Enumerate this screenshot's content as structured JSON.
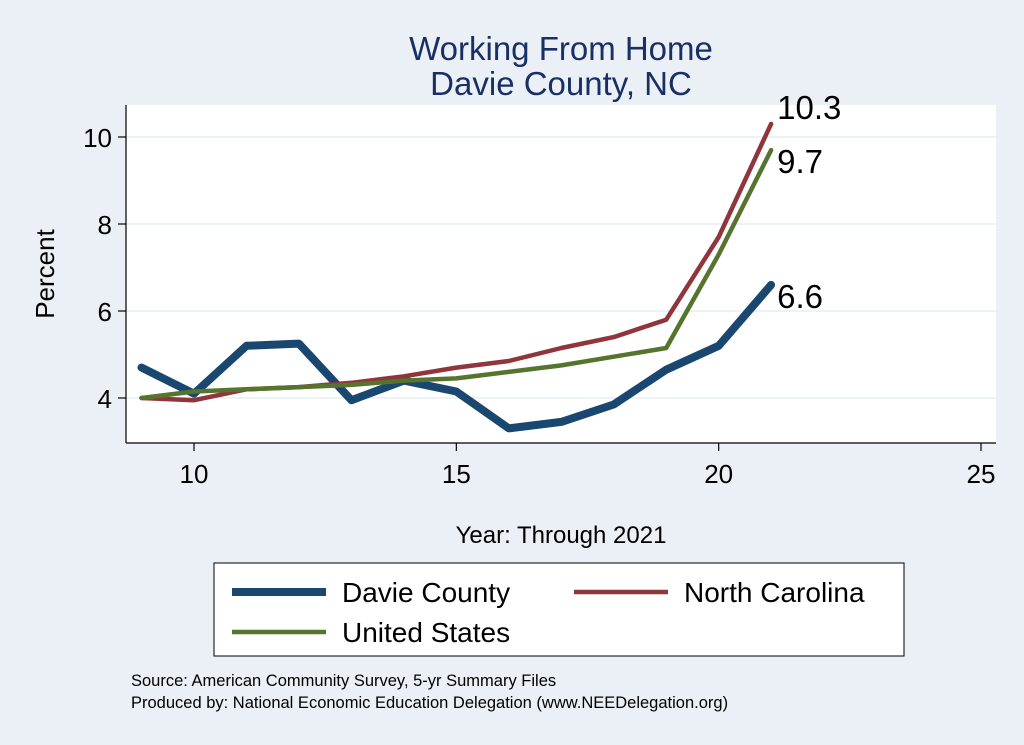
{
  "chart_data": {
    "type": "line",
    "title": "Working From Home",
    "subtitle": "Davie County, NC",
    "xlabel": "Year: Through 2021",
    "ylabel": "Percent",
    "xlim": [
      9,
      25
    ],
    "ylim": [
      3,
      10.5
    ],
    "xticks": [
      10,
      15,
      20,
      25
    ],
    "yticks": [
      4,
      6,
      8,
      10
    ],
    "grid": true,
    "x": [
      9,
      10,
      11,
      12,
      13,
      14,
      15,
      16,
      17,
      18,
      19,
      20,
      21
    ],
    "series": [
      {
        "name": "Davie County",
        "color": "#1a476f",
        "width": "thick",
        "values": [
          4.7,
          4.1,
          5.2,
          5.25,
          3.95,
          4.4,
          4.15,
          3.3,
          3.45,
          3.85,
          4.65,
          5.2,
          6.6
        ],
        "end_label": "6.6"
      },
      {
        "name": "North Carolina",
        "color": "#90353b",
        "width": "medium",
        "values": [
          4.0,
          3.95,
          4.2,
          4.25,
          4.35,
          4.5,
          4.7,
          4.85,
          5.15,
          5.4,
          5.8,
          7.7,
          10.3
        ],
        "end_label": "10.3"
      },
      {
        "name": "United States",
        "color": "#55752f",
        "width": "medium",
        "values": [
          4.0,
          4.15,
          4.2,
          4.25,
          4.3,
          4.4,
          4.45,
          4.6,
          4.75,
          4.95,
          5.15,
          7.3,
          9.7
        ],
        "end_label": "9.7"
      }
    ],
    "legend": {
      "placement": "bottom",
      "order": [
        "Davie County",
        "North Carolina",
        "United States"
      ]
    },
    "notes": [
      "Source: American Community Survey, 5-yr Summary Files",
      "Produced by: National Economic Education Delegation (www.NEEDelegation.org)"
    ]
  }
}
